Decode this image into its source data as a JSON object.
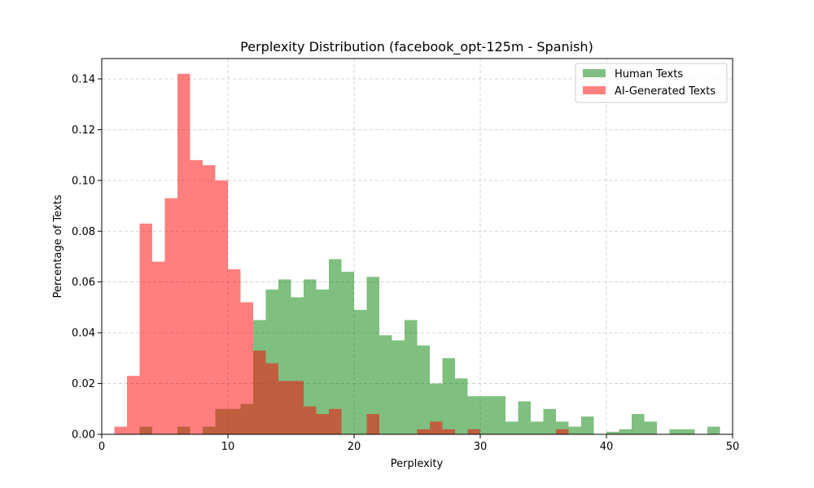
{
  "chart_data": {
    "type": "bar",
    "title": "Perplexity Distribution (facebook_opt-125m - Spanish)",
    "xlabel": "Perplexity",
    "ylabel": "Percentage of Texts",
    "xlim": [
      0,
      50
    ],
    "ylim": [
      0,
      0.148
    ],
    "xticks": [
      0,
      10,
      20,
      30,
      40,
      50
    ],
    "yticks": [
      0.0,
      0.02,
      0.04,
      0.06,
      0.08,
      0.1,
      0.12,
      0.14
    ],
    "xtick_labels": [
      "0",
      "10",
      "20",
      "30",
      "40",
      "50"
    ],
    "ytick_labels": [
      "0.00",
      "0.02",
      "0.04",
      "0.06",
      "0.08",
      "0.10",
      "0.12",
      "0.14"
    ],
    "grid": true,
    "legend": "top-right",
    "series": [
      {
        "name": "Human Texts",
        "color": "#008000",
        "opacity": 0.5,
        "bin_width": 1.0,
        "bins": [
          [
            3,
            0.003
          ],
          [
            6,
            0.003
          ],
          [
            8,
            0.003
          ],
          [
            9,
            0.01
          ],
          [
            10,
            0.01
          ],
          [
            11,
            0.012
          ],
          [
            12,
            0.045
          ],
          [
            13,
            0.057
          ],
          [
            14,
            0.061
          ],
          [
            15,
            0.054
          ],
          [
            16,
            0.061
          ],
          [
            17,
            0.057
          ],
          [
            18,
            0.069
          ],
          [
            19,
            0.064
          ],
          [
            20,
            0.049
          ],
          [
            21,
            0.062
          ],
          [
            22,
            0.039
          ],
          [
            23,
            0.037
          ],
          [
            24,
            0.045
          ],
          [
            25,
            0.035
          ],
          [
            26,
            0.02
          ],
          [
            27,
            0.03
          ],
          [
            28,
            0.022
          ],
          [
            29,
            0.015
          ],
          [
            30,
            0.015
          ],
          [
            31,
            0.015
          ],
          [
            32,
            0.005
          ],
          [
            33,
            0.013
          ],
          [
            34,
            0.005
          ],
          [
            35,
            0.01
          ],
          [
            36,
            0.005
          ],
          [
            37,
            0.003
          ],
          [
            38,
            0.007
          ],
          [
            40,
            0.001
          ],
          [
            41,
            0.002
          ],
          [
            42,
            0.008
          ],
          [
            43,
            0.005
          ],
          [
            45,
            0.002
          ],
          [
            46,
            0.002
          ],
          [
            48,
            0.003
          ]
        ]
      },
      {
        "name": "AI-Generated Texts",
        "color": "#ff0000",
        "opacity": 0.5,
        "bin_width": 1.0,
        "bins": [
          [
            1,
            0.003
          ],
          [
            2,
            0.023
          ],
          [
            3,
            0.083
          ],
          [
            4,
            0.068
          ],
          [
            5,
            0.093
          ],
          [
            6,
            0.142
          ],
          [
            7,
            0.108
          ],
          [
            8,
            0.106
          ],
          [
            9,
            0.1
          ],
          [
            10,
            0.065
          ],
          [
            11,
            0.052
          ],
          [
            12,
            0.033
          ],
          [
            13,
            0.028
          ],
          [
            14,
            0.021
          ],
          [
            15,
            0.021
          ],
          [
            16,
            0.011
          ],
          [
            17,
            0.008
          ],
          [
            18,
            0.01
          ],
          [
            21,
            0.008
          ],
          [
            25,
            0.002
          ],
          [
            26,
            0.005
          ],
          [
            27,
            0.002
          ],
          [
            29,
            0.002
          ],
          [
            36,
            0.002
          ]
        ]
      }
    ]
  }
}
